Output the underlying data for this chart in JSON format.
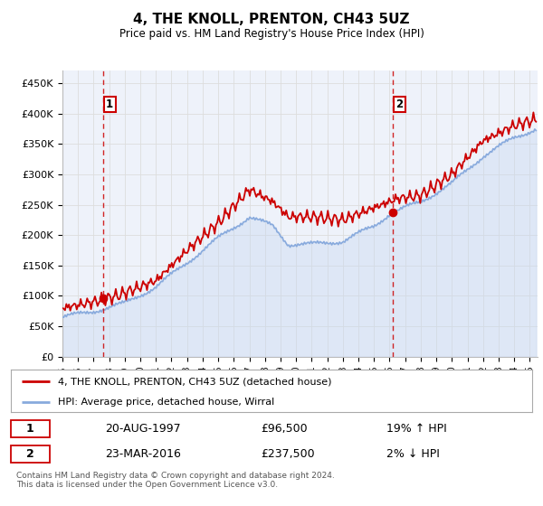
{
  "title": "4, THE KNOLL, PRENTON, CH43 5UZ",
  "subtitle": "Price paid vs. HM Land Registry's House Price Index (HPI)",
  "ylabel_ticks": [
    "£0",
    "£50K",
    "£100K",
    "£150K",
    "£200K",
    "£250K",
    "£300K",
    "£350K",
    "£400K",
    "£450K"
  ],
  "ytick_values": [
    0,
    50000,
    100000,
    150000,
    200000,
    250000,
    300000,
    350000,
    400000,
    450000
  ],
  "ylim": [
    0,
    470000
  ],
  "xlim_start": 1995.0,
  "xlim_end": 2025.5,
  "sale1_x": 1997.64,
  "sale1_y": 96500,
  "sale2_x": 2016.23,
  "sale2_y": 237500,
  "vline1_x": 1997.64,
  "vline2_x": 2016.23,
  "legend_label_red": "4, THE KNOLL, PRENTON, CH43 5UZ (detached house)",
  "legend_label_blue": "HPI: Average price, detached house, Wirral",
  "table_row1_num": "1",
  "table_row1_date": "20-AUG-1997",
  "table_row1_price": "£96,500",
  "table_row1_hpi": "19% ↑ HPI",
  "table_row2_num": "2",
  "table_row2_date": "23-MAR-2016",
  "table_row2_price": "£237,500",
  "table_row2_hpi": "2% ↓ HPI",
  "footnote": "Contains HM Land Registry data © Crown copyright and database right 2024.\nThis data is licensed under the Open Government Licence v3.0.",
  "red_color": "#cc0000",
  "blue_color": "#88aadd",
  "blue_fill": "#c8d8f0",
  "grid_color": "#dddddd",
  "plot_bg_color": "#eef2fa",
  "annotation_box_color": "#cc0000"
}
